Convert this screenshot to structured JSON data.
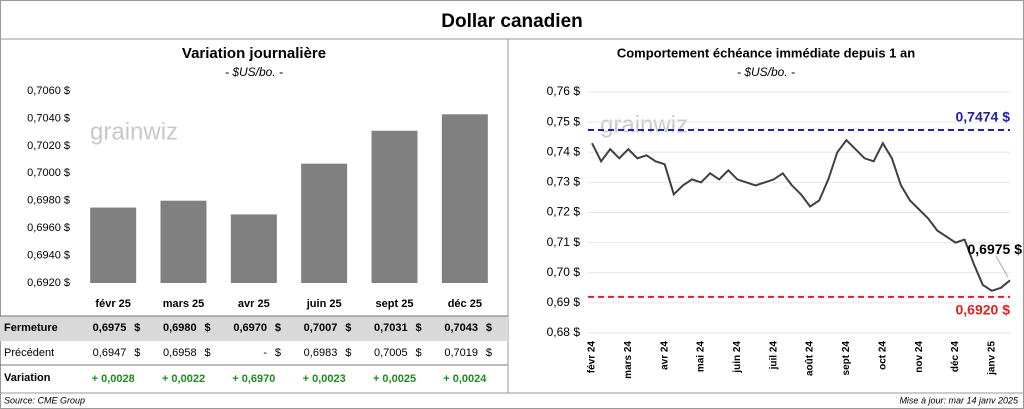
{
  "title": "Dollar canadien",
  "chart_data": [
    {
      "type": "bar",
      "title": "Variation journalière",
      "subtitle": "- $US/bo. -",
      "watermark": "grainwiz",
      "color": "#808080",
      "categories": [
        "févr 25",
        "mars 25",
        "avr 25",
        "juin 25",
        "sept 25",
        "déc 25"
      ],
      "values": [
        0.6975,
        0.698,
        0.697,
        0.7007,
        0.7031,
        0.7043
      ],
      "ylim": [
        0.692,
        0.706
      ],
      "yticks": [
        {
          "value": 0.692,
          "label": "0,6920 $"
        },
        {
          "value": 0.694,
          "label": "0,6940 $"
        },
        {
          "value": 0.696,
          "label": "0,6960 $"
        },
        {
          "value": 0.698,
          "label": "0,6980 $"
        },
        {
          "value": 0.7,
          "label": "0,7000 $"
        },
        {
          "value": 0.702,
          "label": "0,7020 $"
        },
        {
          "value": 0.704,
          "label": "0,7040 $"
        },
        {
          "value": 0.706,
          "label": "0,7060 $"
        }
      ],
      "grid": false
    },
    {
      "type": "line",
      "title": "Comportement échéance immédiate depuis 1 an",
      "subtitle": "- $US/bo. -",
      "watermark": "grainwiz",
      "color": "#404040",
      "categories": [
        "févr 24",
        null,
        null,
        null,
        "mars 24",
        null,
        null,
        null,
        "avr 24",
        null,
        null,
        null,
        "mai 24",
        null,
        null,
        null,
        "juin 24",
        null,
        null,
        null,
        "juil 24",
        null,
        null,
        null,
        "août 24",
        null,
        null,
        null,
        "sept 24",
        null,
        null,
        null,
        "oct 24",
        null,
        null,
        null,
        "nov 24",
        null,
        null,
        null,
        "déc 24",
        null,
        null,
        null,
        "janv 25",
        null,
        null
      ],
      "values": [
        0.743,
        0.737,
        0.741,
        0.738,
        0.741,
        0.738,
        0.739,
        0.737,
        0.736,
        0.726,
        0.729,
        0.731,
        0.73,
        0.733,
        0.731,
        0.734,
        0.731,
        0.73,
        0.729,
        0.73,
        0.731,
        0.733,
        0.729,
        0.726,
        0.722,
        0.724,
        0.731,
        0.74,
        0.744,
        0.741,
        0.738,
        0.737,
        0.743,
        0.738,
        0.729,
        0.724,
        0.721,
        0.718,
        0.714,
        0.712,
        0.71,
        0.711,
        0.703,
        0.696,
        0.694,
        0.695,
        0.6975
      ],
      "last_value_label": "0,6975 $",
      "reference_lines": [
        {
          "value": 0.7474,
          "label": "0,7474 $",
          "color": "#1f1fa8"
        },
        {
          "value": 0.692,
          "label": "0,6920 $",
          "color": "#e02020"
        }
      ],
      "ylim": [
        0.68,
        0.76
      ],
      "yticks": [
        {
          "value": 0.68,
          "label": "0,68 $"
        },
        {
          "value": 0.69,
          "label": "0,69 $"
        },
        {
          "value": 0.7,
          "label": "0,70 $"
        },
        {
          "value": 0.71,
          "label": "0,71 $"
        },
        {
          "value": 0.72,
          "label": "0,72 $"
        },
        {
          "value": 0.73,
          "label": "0,73 $"
        },
        {
          "value": 0.74,
          "label": "0,74 $"
        },
        {
          "value": 0.75,
          "label": "0,75 $"
        },
        {
          "value": 0.76,
          "label": "0,76 $"
        }
      ],
      "grid": true
    }
  ],
  "table": {
    "unit": "$",
    "rows": [
      {
        "label": "Fermeture",
        "cells": [
          "0,6975",
          "0,6980",
          "0,6970",
          "0,7007",
          "0,7031",
          "0,7043"
        ]
      },
      {
        "label": "Précédent",
        "cells": [
          "0,6947",
          "0,6958",
          "-",
          "0,6983",
          "0,7005",
          "0,7019"
        ]
      },
      {
        "label": "Variation",
        "cells": [
          "+ 0,0028",
          "+ 0,0022",
          "+ 0,6970",
          "+ 0,0023",
          "+ 0,0025",
          "+ 0,0024"
        ]
      }
    ]
  },
  "footer": {
    "source": "Source: CME Group",
    "updated": "Mise à jour: mar 14 janv 2025"
  }
}
